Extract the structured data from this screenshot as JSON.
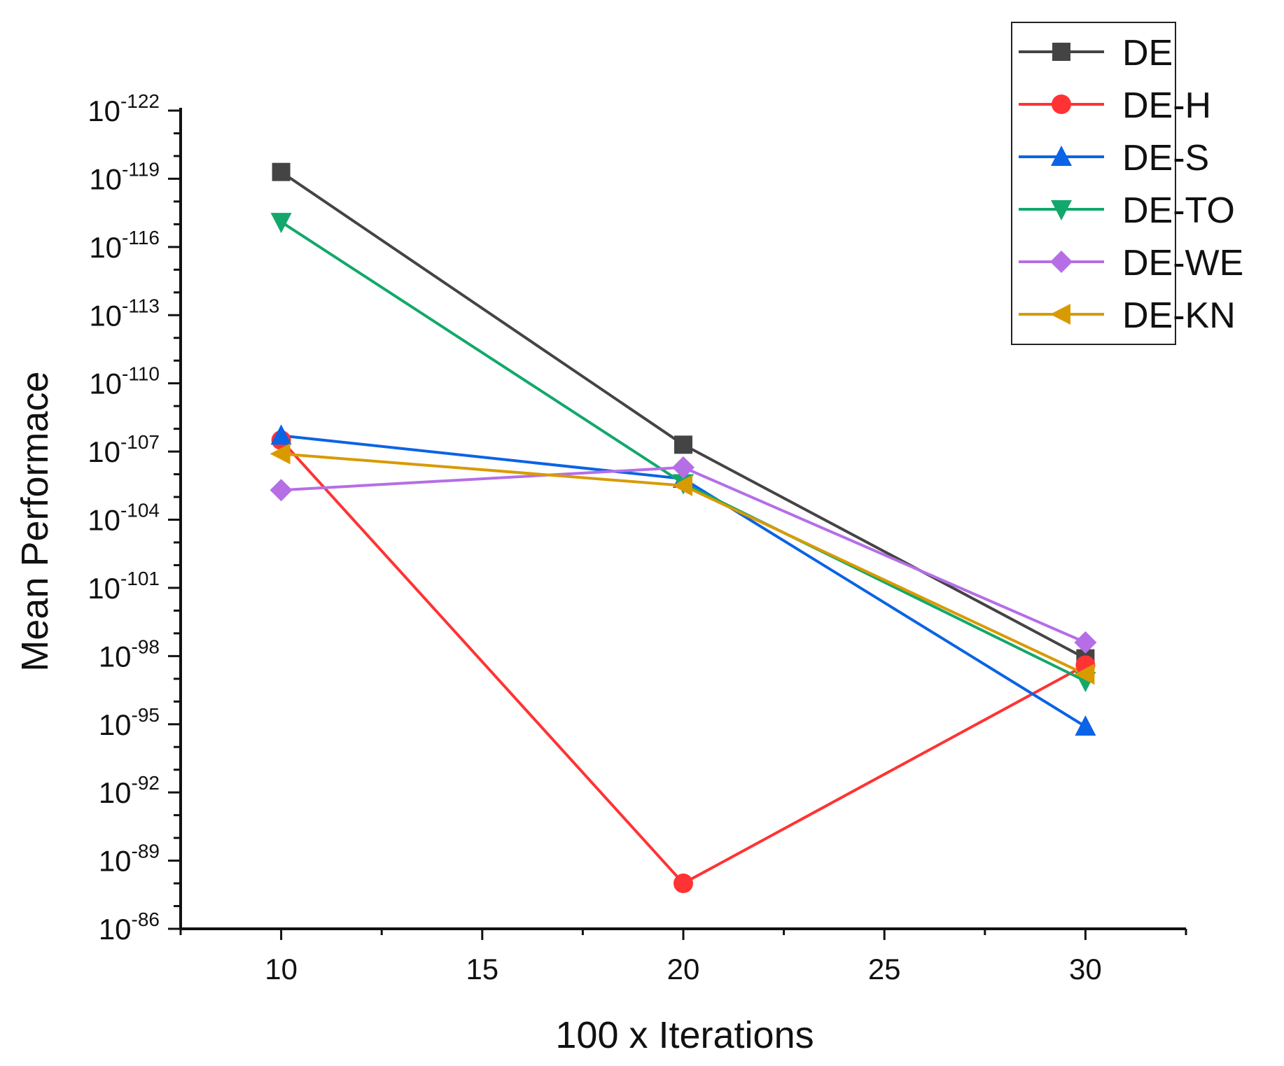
{
  "chart_data": {
    "type": "line",
    "title": "",
    "xlabel": "100 x Iterations",
    "ylabel": "Mean Performace",
    "yscale": "log",
    "y_axis_inverted": true,
    "x": [
      10,
      20,
      30
    ],
    "xlim": [
      7.5,
      32.5
    ],
    "xticks": [
      "10",
      "15",
      "20",
      "25",
      "30"
    ],
    "ylim_exponent": [
      -86,
      -122
    ],
    "yticks": [
      {
        "base": "10",
        "exp": "-122"
      },
      {
        "base": "10",
        "exp": "-119"
      },
      {
        "base": "10",
        "exp": "-116"
      },
      {
        "base": "10",
        "exp": "-113"
      },
      {
        "base": "10",
        "exp": "-110"
      },
      {
        "base": "10",
        "exp": "-107"
      },
      {
        "base": "10",
        "exp": "-104"
      },
      {
        "base": "10",
        "exp": "-101"
      },
      {
        "base": "10",
        "exp": "-98"
      },
      {
        "base": "10",
        "exp": "-95"
      },
      {
        "base": "10",
        "exp": "-92"
      },
      {
        "base": "10",
        "exp": "-89"
      },
      {
        "base": "10",
        "exp": "-86"
      }
    ],
    "legend_position": "top-right",
    "series": [
      {
        "name": "DE",
        "color": "#444444",
        "marker": "square",
        "log10_values": [
          -119.3,
          -107.3,
          -97.9
        ]
      },
      {
        "name": "DE-H",
        "color": "#ff3333",
        "marker": "circle",
        "log10_values": [
          -107.5,
          -88.0,
          -97.6
        ]
      },
      {
        "name": "DE-S",
        "color": "#0b63e5",
        "marker": "triangle-up",
        "log10_values": [
          -107.7,
          -105.8,
          -94.9
        ]
      },
      {
        "name": "DE-TO",
        "color": "#13a86b",
        "marker": "triangle-down",
        "log10_values": [
          -117.1,
          -105.6,
          -96.9
        ]
      },
      {
        "name": "DE-WE",
        "color": "#b56ee6",
        "marker": "diamond",
        "log10_values": [
          -105.3,
          -106.3,
          -98.6
        ]
      },
      {
        "name": "DE-KN",
        "color": "#d99a00",
        "marker": "triangle-left",
        "log10_values": [
          -106.9,
          -105.5,
          -97.2
        ]
      }
    ]
  }
}
